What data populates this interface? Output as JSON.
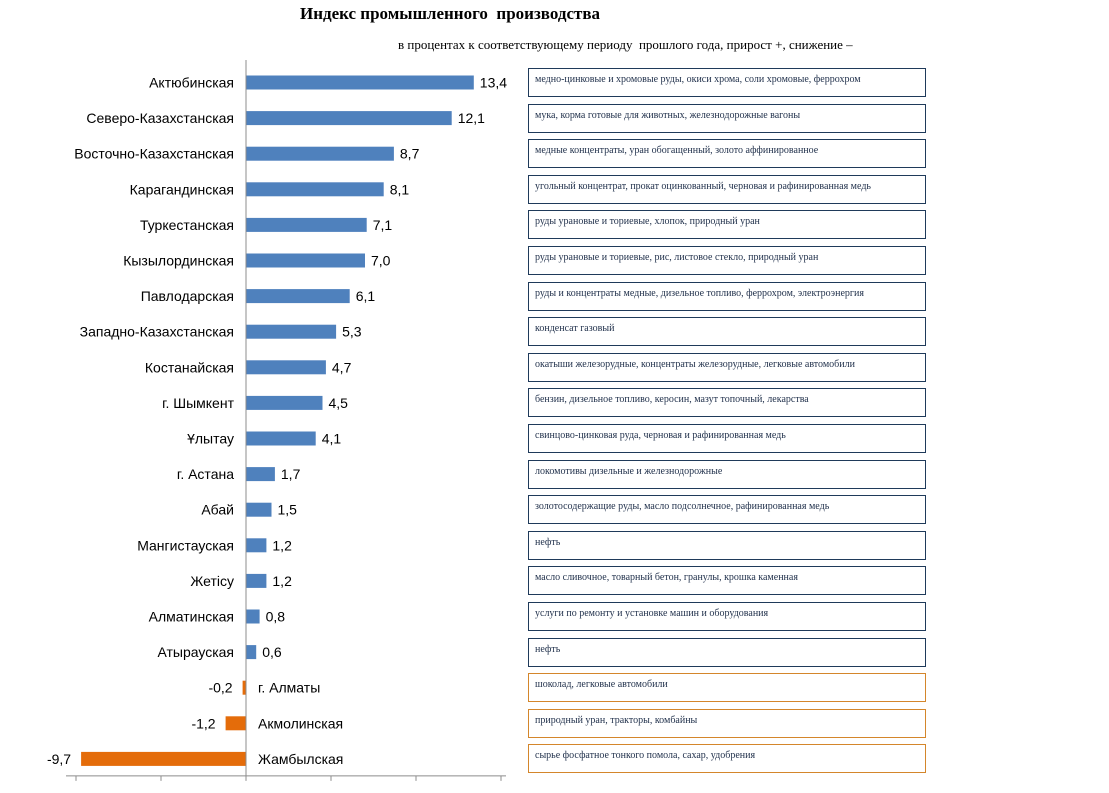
{
  "header": {
    "title": "Индекс промышленного  производства",
    "subtitle": "в процентах к соответствующему периоду  прошлого года, прирост +, снижение –"
  },
  "colors": {
    "positive": "#4f81bd",
    "negative": "#e46c0a",
    "note_border": "#1f3a5a",
    "note_border_negative": "#d4862b"
  },
  "chart_data": {
    "type": "bar",
    "orientation": "horizontal",
    "title": "Индекс промышленного  производства",
    "subtitle": "в процентах к соответствующему периоду  прошлого года, прирост +, снижение –",
    "categories": [
      "Актюбинская",
      "Северо-Казахстанская",
      "Восточно-Казахстанская",
      "Карагандинская",
      "Туркестанская",
      "Кызылординская",
      "Павлодарская",
      "Западно-Казахстанская",
      "Костанайская",
      "г. Шымкент",
      "Ұлытау",
      "г. Астана",
      "Абай",
      "Мангистауская",
      "Жетісу",
      "Алматинская",
      "Атырауская",
      "г. Алматы",
      "Акмолинская",
      "Жамбылская"
    ],
    "values": [
      13.4,
      12.1,
      8.7,
      8.1,
      7.1,
      7.0,
      6.1,
      5.3,
      4.7,
      4.5,
      4.1,
      1.7,
      1.5,
      1.2,
      1.2,
      0.8,
      0.6,
      -0.2,
      -1.2,
      -9.7
    ],
    "value_labels": [
      "13,4",
      "12,1",
      "8,7",
      "8,1",
      "7,1",
      "7,0",
      "6,1",
      "5,3",
      "4,7",
      "4,5",
      "4,1",
      "1,7",
      "1,5",
      "1,2",
      "1,2",
      "0,8",
      "0,6",
      "-0,2",
      "-1,2",
      "-9,7"
    ],
    "xlim": [
      -10,
      15
    ],
    "grid": false,
    "legend": "none"
  },
  "notes": [
    "медно-цинковые и хромовые руды, окиси хрома, соли хромовые, феррохром",
    "мука, корма готовые для животных, железнодорожные вагоны",
    "медные концентраты, уран обогащенный, золото аффинированное",
    "угольный концентрат, прокат оцинкованный, черновая и рафинированная медь",
    "руды урановые и ториевые, хлопок, природный уран",
    "руды урановые и ториевые, рис, листовое стекло, природный уран",
    "руды и концентраты медные, дизельное топливо, феррохром, электроэнергия",
    "конденсат газовый",
    "окатыши железорудные, концентраты железорудные, легковые автомобили",
    "бензин, дизельное топливо, керосин, мазут топочный, лекарства",
    "свинцово-цинковая руда, черновая и рафинированная медь",
    "локомотивы дизельные и железнодорожные",
    "золотосодержащие руды, масло подсолнечное, рафинированная медь",
    "нефть",
    "масло сливочное, товарный бетон, гранулы, крошка каменная",
    "услуги по ремонту и установке машин и оборудования",
    "нефть",
    "шоколад, легковые автомобили",
    "природный уран, тракторы, комбайны",
    "сырье фосфатное тонкого помола, сахар, удобрения"
  ]
}
